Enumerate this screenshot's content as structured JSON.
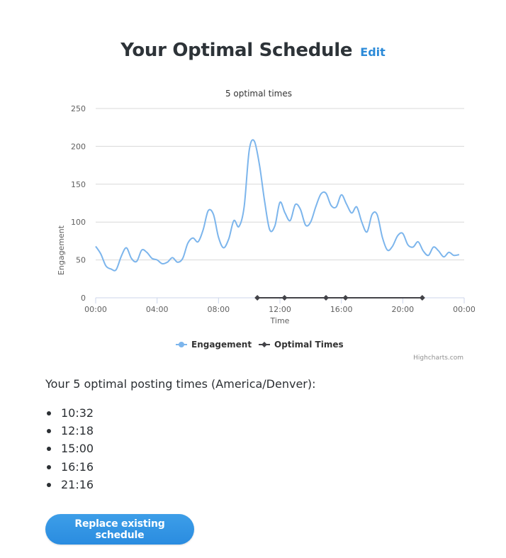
{
  "header": {
    "title": "Your Optimal Schedule",
    "edit_label": "Edit"
  },
  "colors": {
    "accent": "#2b8ad8",
    "engagement_line": "#7cb5ec",
    "optimal_line": "#434348",
    "button": "#2a8ce0"
  },
  "chart_data": {
    "type": "line",
    "title": "5 optimal times",
    "xlabel": "Time",
    "ylabel": "Engagement",
    "ylim": [
      0,
      250
    ],
    "yticks": [
      0,
      50,
      100,
      150,
      200,
      250
    ],
    "xticks": [
      "00:00",
      "04:00",
      "08:00",
      "12:00",
      "16:00",
      "20:00",
      "00:00"
    ],
    "grid": true,
    "legend_position": "bottom",
    "credits": "Highcharts.com",
    "series": [
      {
        "name": "Engagement",
        "color": "#7cb5ec",
        "x_hours": [
          0,
          0.33,
          0.67,
          1,
          1.33,
          1.67,
          2,
          2.33,
          2.67,
          3,
          3.33,
          3.67,
          4,
          4.33,
          4.67,
          5,
          5.33,
          5.67,
          6,
          6.33,
          6.67,
          7,
          7.33,
          7.67,
          8,
          8.33,
          8.67,
          9,
          9.33,
          9.67,
          10,
          10.33,
          10.67,
          11,
          11.33,
          11.67,
          12,
          12.33,
          12.67,
          13,
          13.33,
          13.67,
          14,
          14.33,
          14.67,
          15,
          15.33,
          15.67,
          16,
          16.33,
          16.67,
          17,
          17.33,
          17.67,
          18,
          18.33,
          18.67,
          19,
          19.33,
          19.67,
          20,
          20.33,
          20.67,
          21,
          21.33,
          21.67,
          22,
          22.33,
          22.67,
          23,
          23.33,
          23.67
        ],
        "values": [
          68,
          58,
          42,
          38,
          37,
          55,
          66,
          52,
          48,
          63,
          60,
          52,
          50,
          45,
          47,
          53,
          47,
          52,
          72,
          79,
          74,
          90,
          115,
          110,
          80,
          66,
          78,
          102,
          94,
          120,
          195,
          207,
          175,
          128,
          90,
          95,
          126,
          112,
          102,
          123,
          117,
          96,
          100,
          120,
          137,
          138,
          122,
          120,
          136,
          124,
          112,
          120,
          100,
          87,
          110,
          110,
          80,
          63,
          68,
          82,
          85,
          70,
          67,
          74,
          62,
          56,
          67,
          62,
          54,
          60,
          56,
          57
        ]
      },
      {
        "name": "Optimal Times",
        "color": "#434348",
        "x_labels": [
          "10:32",
          "12:18",
          "15:00",
          "16:16",
          "21:16"
        ],
        "x_hours": [
          10.53,
          12.3,
          15.0,
          16.27,
          21.27
        ],
        "values": [
          0,
          0,
          0,
          0,
          0
        ]
      }
    ]
  },
  "schedule": {
    "heading": "Your 5 optimal posting times (America/Denver):",
    "times": [
      "10:32",
      "12:18",
      "15:00",
      "16:16",
      "21:16"
    ]
  },
  "actions": {
    "replace_label": "Replace existing schedule"
  }
}
